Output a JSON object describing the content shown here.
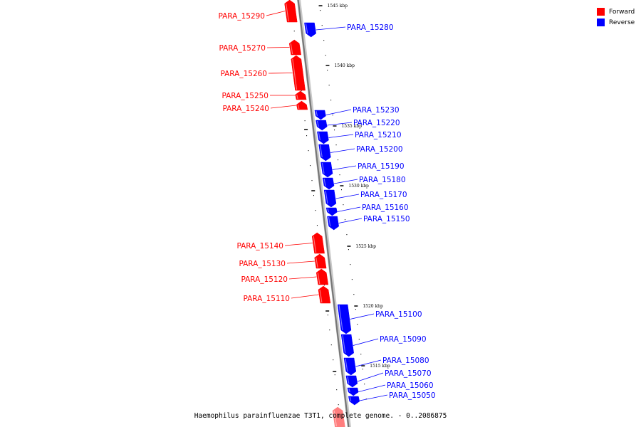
{
  "title": "Haemophilus parainfluenzae T3T1, complete genome. - 0..2086875",
  "legend": {
    "forward_label": "Forward",
    "reverse_label": "Reverse",
    "forward_color": "#ff0000",
    "reverse_color": "#0000ff"
  },
  "scale_labels": [
    "1545 kbp",
    "1540 kbp",
    "1535 kbp",
    "1530 kbp",
    "1525 kbp",
    "1520 kbp",
    "1515 kbp"
  ],
  "genes": [
    {
      "name": "PARA_15290",
      "strand": "forward"
    },
    {
      "name": "PARA_15280",
      "strand": "reverse"
    },
    {
      "name": "PARA_15270",
      "strand": "forward"
    },
    {
      "name": "PARA_15260",
      "strand": "forward"
    },
    {
      "name": "PARA_15250",
      "strand": "forward"
    },
    {
      "name": "PARA_15240",
      "strand": "forward"
    },
    {
      "name": "PARA_15230",
      "strand": "reverse"
    },
    {
      "name": "PARA_15220",
      "strand": "reverse"
    },
    {
      "name": "PARA_15210",
      "strand": "reverse"
    },
    {
      "name": "PARA_15200",
      "strand": "reverse"
    },
    {
      "name": "PARA_15190",
      "strand": "reverse"
    },
    {
      "name": "PARA_15180",
      "strand": "reverse"
    },
    {
      "name": "PARA_15170",
      "strand": "reverse"
    },
    {
      "name": "PARA_15160",
      "strand": "reverse"
    },
    {
      "name": "PARA_15150",
      "strand": "reverse"
    },
    {
      "name": "PARA_15140",
      "strand": "forward"
    },
    {
      "name": "PARA_15130",
      "strand": "forward"
    },
    {
      "name": "PARA_15120",
      "strand": "forward"
    },
    {
      "name": "PARA_15110",
      "strand": "forward"
    },
    {
      "name": "PARA_15100",
      "strand": "reverse"
    },
    {
      "name": "PARA_15090",
      "strand": "reverse"
    },
    {
      "name": "PARA_15080",
      "strand": "reverse"
    },
    {
      "name": "PARA_15070",
      "strand": "reverse"
    },
    {
      "name": "PARA_15060",
      "strand": "reverse"
    },
    {
      "name": "PARA_15050",
      "strand": "reverse"
    },
    {
      "name": "",
      "strand": "forward"
    }
  ]
}
